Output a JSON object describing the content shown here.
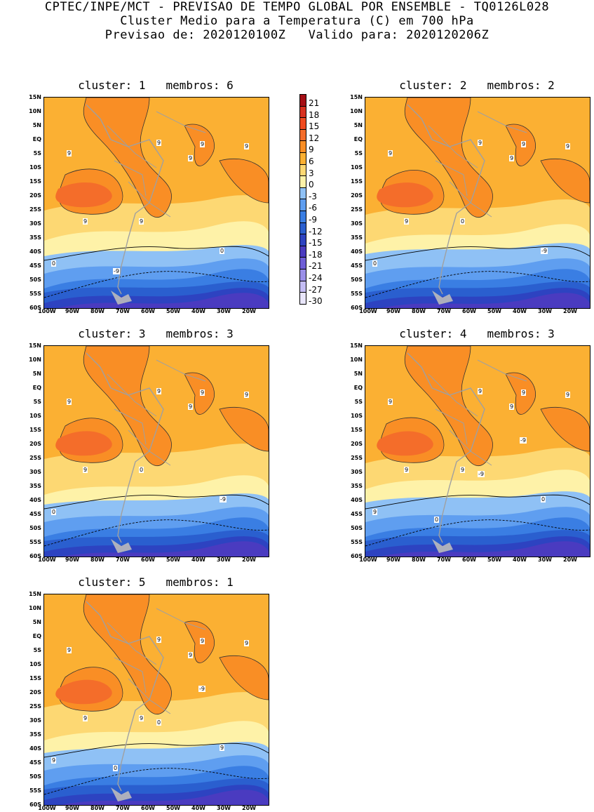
{
  "header": {
    "line1": "CPTEC/INPE/MCT - PREVISAO DE TEMPO GLOBAL POR ENSEMBLE - TQ0126L028",
    "line2": "Cluster Medio para a Temperatura (C) em 700 hPa",
    "line3": "Previsao de: 2020120100Z   Valido para: 2020120206Z"
  },
  "lat_ticks": [
    "15N",
    "10N",
    "5N",
    "EQ",
    "5S",
    "10S",
    "15S",
    "20S",
    "25S",
    "30S",
    "35S",
    "40S",
    "45S",
    "50S",
    "55S",
    "60S"
  ],
  "lon_ticks": [
    "100W",
    "90W",
    "80W",
    "70W",
    "60W",
    "50W",
    "40W",
    "30W",
    "20W"
  ],
  "colorbar": {
    "labels": [
      "21",
      "18",
      "15",
      "12",
      "9",
      "6",
      "3",
      "0",
      "-3",
      "-6",
      "-9",
      "-12",
      "-15",
      "-18",
      "-21",
      "-24",
      "-27",
      "-30"
    ],
    "colors": [
      "#a50f15",
      "#d7301f",
      "#ef4a1f",
      "#f46d2a",
      "#f98e25",
      "#fbb033",
      "#fdd873",
      "#fef2a8",
      "#8fc1f5",
      "#5f9ef0",
      "#3a7ee3",
      "#2a5fcf",
      "#2d43c1",
      "#4a3bc0",
      "#6e5ed6",
      "#9a8fe8",
      "#c4bdf4",
      "#e9e6fb"
    ]
  },
  "panels": [
    {
      "title": "cluster: 1   membros: 6",
      "labels": [
        "9",
        "9",
        "9",
        "9",
        "9",
        "9",
        "9",
        "0",
        "0",
        "-9"
      ]
    },
    {
      "title": "cluster: 2   membros: 2",
      "labels": [
        "9",
        "9",
        "9",
        "9",
        "9",
        "9",
        "0",
        "0",
        "-9"
      ]
    },
    {
      "title": "cluster: 3   membros: 3",
      "labels": [
        "9",
        "9",
        "9",
        "9",
        "9",
        "9",
        "0",
        "0",
        "-9"
      ]
    },
    {
      "title": "cluster: 4   membros: 3",
      "labels": [
        "9",
        "9",
        "9",
        "9",
        "9",
        "9",
        "9",
        "9",
        "0",
        "0",
        "-9",
        "-9"
      ]
    },
    {
      "title": "cluster: 5   membros: 1",
      "labels": [
        "9",
        "9",
        "9",
        "9",
        "9",
        "9",
        "9",
        "9",
        "9",
        "0",
        "0",
        "-9"
      ]
    }
  ]
}
